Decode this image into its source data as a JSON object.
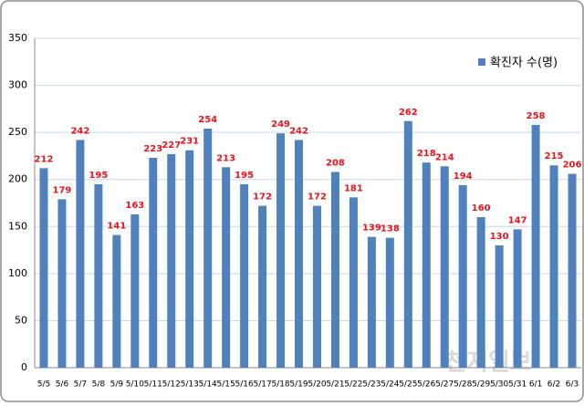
{
  "chart_data": {
    "type": "bar",
    "categories": [
      "5/5",
      "5/6",
      "5/7",
      "5/8",
      "5/9",
      "5/10",
      "5/11",
      "5/12",
      "5/13",
      "5/14",
      "5/15",
      "5/16",
      "5/17",
      "5/18",
      "5/19",
      "5/20",
      "5/21",
      "5/22",
      "5/23",
      "5/24",
      "5/25",
      "5/26",
      "5/27",
      "5/28",
      "5/29",
      "5/30",
      "5/31",
      "6/1",
      "6/2",
      "6/3"
    ],
    "series": [
      {
        "name": "확진자 수(명)",
        "color": "#4f81bd",
        "values": [
          212,
          179,
          242,
          195,
          141,
          163,
          223,
          227,
          231,
          254,
          213,
          195,
          172,
          249,
          242,
          172,
          208,
          181,
          139,
          138,
          262,
          218,
          214,
          194,
          160,
          130,
          147,
          258,
          215,
          206
        ]
      }
    ],
    "ylim": [
      0,
      350
    ],
    "yticks": [
      0,
      50,
      100,
      150,
      200,
      250,
      300,
      350
    ],
    "grid": true,
    "legend": "top-right",
    "value_label_color": "#e8141c",
    "watermark": "천지일보"
  }
}
